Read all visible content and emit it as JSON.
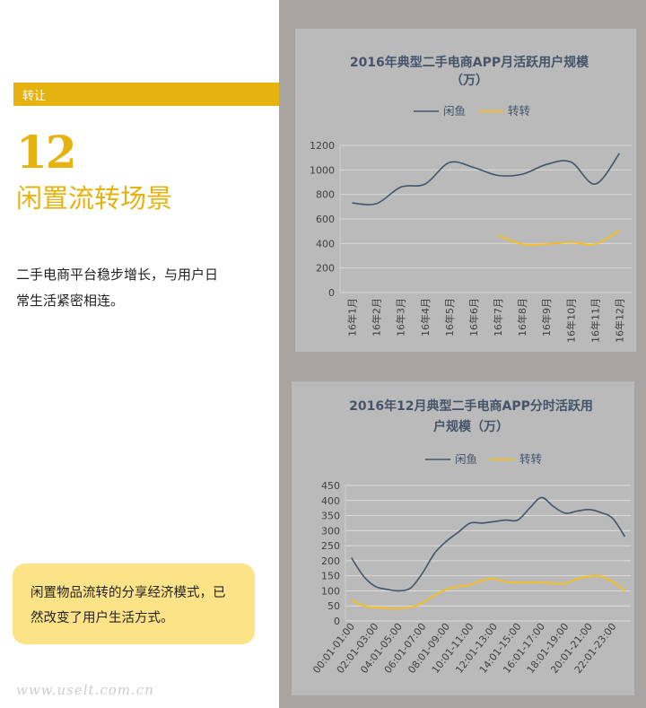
{
  "left": {
    "tag": "转让",
    "number": "12",
    "title": "闲置流转场景",
    "desc_line1": "二手电商平台稳步增长，与用户日",
    "desc_line2": "常生活紧密相连。",
    "callout_line1": "闲置物品流转的分享经济模式，已",
    "callout_line2": "然改变了用户生活方式。",
    "watermark": "www.uselt.com.cn"
  },
  "colors": {
    "accent": "#e6b20f",
    "xianyu": "#44546a",
    "zhuanzhuan": "#ffc000",
    "callout_bg": "#fde387",
    "panel_bg": "#bababa",
    "right_bg": "#a7a4a2"
  },
  "chart_data": [
    {
      "type": "line",
      "title_line1": "2016年典型二手电商APP月活跃用户规模",
      "title_line2": "（万）",
      "categories": [
        "16年1月",
        "16年2月",
        "16年3月",
        "16年4月",
        "16年5月",
        "16年6月",
        "16年7月",
        "16年8月",
        "16年9月",
        "16年10月",
        "16年11月",
        "16年12月"
      ],
      "series": [
        {
          "name": "闲鱼",
          "color": "#44546a",
          "values": [
            730,
            725,
            860,
            885,
            1060,
            1020,
            955,
            965,
            1045,
            1065,
            885,
            1135
          ]
        },
        {
          "name": "转转",
          "color": "#ffc000",
          "values": [
            null,
            null,
            null,
            null,
            null,
            null,
            465,
            395,
            395,
            410,
            395,
            505
          ]
        }
      ],
      "yticks": [
        "0",
        "200",
        "400",
        "600",
        "800",
        "1000",
        "1200"
      ],
      "ylim": [
        0,
        1200
      ],
      "legend": "top"
    },
    {
      "type": "line",
      "title_line1": "2016年12月典型二手电商APP分时活跃用",
      "title_line2": "户规模（万）",
      "x": [
        "00:01-01:00",
        "01:01-02:00",
        "02:01-03:00",
        "03:01-04:00",
        "04:01-05:00",
        "05:01-06:00",
        "06:01-07:00",
        "07:01-08:00",
        "08:01-09:00",
        "09:01-10:00",
        "10:01-11:00",
        "11:01-12:00",
        "12:01-13:00",
        "13:01-14:00",
        "14:01-15:00",
        "15:01-16:00",
        "16:01-17:00",
        "17:01-18:00",
        "18:01-19:00",
        "19:01-20:00",
        "20:01-21:00",
        "21:01-22:00",
        "22:01-23:00",
        "23:01-24:00"
      ],
      "xticks": [
        "00:01-01:00",
        "02:01-03:00",
        "04:01-05:00",
        "06:01-07:00",
        "08:01-09:00",
        "10:01-11:00",
        "12:01-13:00",
        "14:01-15:00",
        "16:01-17:00",
        "18:01-19:00",
        "20:01-21:00",
        "22:01-23:00"
      ],
      "series": [
        {
          "name": "闲鱼",
          "color": "#44546a",
          "values": [
            210,
            150,
            115,
            105,
            100,
            110,
            160,
            225,
            265,
            295,
            325,
            325,
            330,
            335,
            335,
            375,
            410,
            380,
            358,
            365,
            370,
            360,
            340,
            280
          ]
        },
        {
          "name": "转转",
          "color": "#ffc000",
          "values": [
            70,
            50,
            45,
            42,
            42,
            45,
            60,
            85,
            105,
            115,
            120,
            135,
            140,
            130,
            128,
            128,
            128,
            125,
            125,
            140,
            148,
            148,
            130,
            100
          ]
        }
      ],
      "yticks": [
        "0",
        "50",
        "100",
        "150",
        "200",
        "250",
        "300",
        "350",
        "400",
        "450"
      ],
      "ylim": [
        0,
        450
      ],
      "legend": "top"
    }
  ]
}
